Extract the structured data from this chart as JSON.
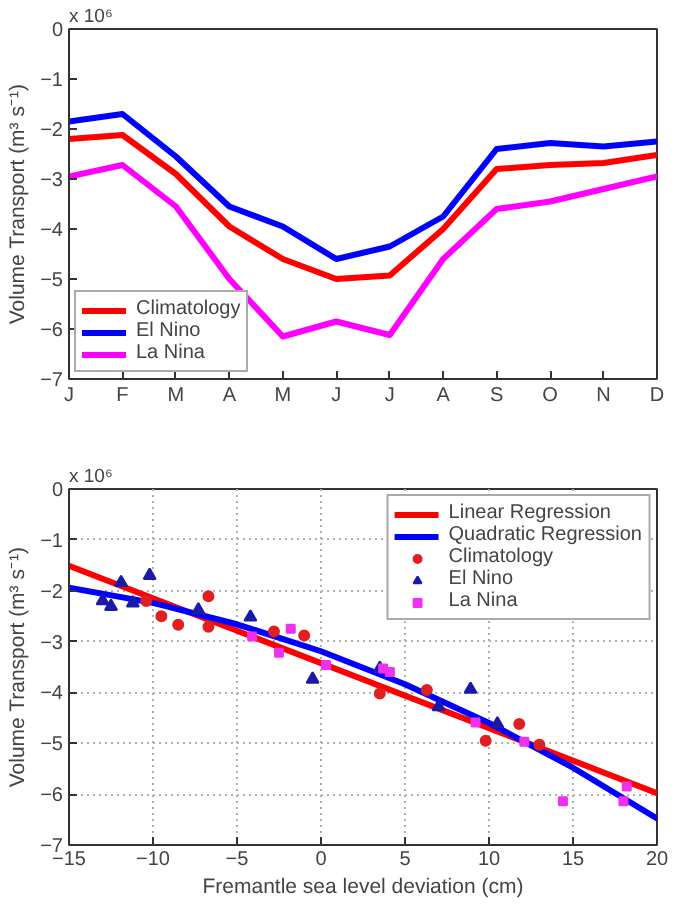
{
  "chart_data": [
    {
      "type": "line",
      "ylabel": "Volume Transport (m³ s⁻¹)",
      "annotations": [
        "x 10⁶"
      ],
      "categories": [
        "J",
        "F",
        "M",
        "A",
        "M",
        "J",
        "J",
        "A",
        "S",
        "O",
        "N",
        "D"
      ],
      "ylim": [
        -7,
        0
      ],
      "yticks": [
        -7,
        -6,
        -5,
        -4,
        -3,
        -2,
        -1,
        0
      ],
      "legend": "bottom left",
      "series": [
        {
          "name": "Climatology",
          "color": "#ff0000",
          "values": [
            -2.2,
            -2.12,
            -2.9,
            -3.95,
            -4.6,
            -5.0,
            -4.93,
            -4.0,
            -2.8,
            -2.72,
            -2.68,
            -2.52
          ]
        },
        {
          "name": "El Nino",
          "color": "#0000ff",
          "values": [
            -1.85,
            -1.7,
            -2.55,
            -3.55,
            -3.95,
            -4.6,
            -4.35,
            -3.75,
            -2.4,
            -2.28,
            -2.35,
            -2.25
          ]
        },
        {
          "name": "La Nina",
          "color": "#ff00ff",
          "values": [
            -2.95,
            -2.72,
            -3.55,
            -5.0,
            -6.15,
            -5.85,
            -6.12,
            -4.6,
            -3.6,
            -3.45,
            -3.2,
            -2.95
          ]
        }
      ]
    },
    {
      "type": "scatter",
      "xlabel": "Fremantle sea level deviation (cm)",
      "ylabel": "Volume Transport (m³ s⁻¹)",
      "annotations": [
        "x 10⁶"
      ],
      "xlim": [
        -15,
        20
      ],
      "xticks": [
        -15,
        -10,
        -5,
        0,
        5,
        10,
        15,
        20
      ],
      "ylim": [
        -7,
        0
      ],
      "yticks": [
        -7,
        -6,
        -5,
        -4,
        -3,
        -2,
        -1,
        0
      ],
      "grid": true,
      "legend": "top right",
      "series": [
        {
          "name": "Linear Regression",
          "type": "line",
          "marker": "none",
          "color": "#ff0000",
          "x": [
            -15,
            20
          ],
          "values": [
            -1.51,
            -5.98
          ]
        },
        {
          "name": "Quadratic Regression",
          "type": "line",
          "marker": "none",
          "color": "#0000ff",
          "x": [
            -15,
            -10,
            -5,
            0,
            5,
            10,
            15,
            20
          ],
          "values": [
            -1.94,
            -2.24,
            -2.66,
            -3.19,
            -3.84,
            -4.6,
            -5.48,
            -6.48
          ]
        },
        {
          "name": "Climatology",
          "type": "scatter",
          "marker": "circle",
          "color": "#e02020",
          "x": [
            -10.4,
            -9.5,
            -8.5,
            -6.7,
            -6.7,
            -2.8,
            -1.0,
            3.5,
            6.3,
            9.8,
            11.8,
            13.0
          ],
          "values": [
            -2.2,
            -2.5,
            -2.67,
            -2.11,
            -2.71,
            -2.8,
            -2.88,
            -4.02,
            -3.95,
            -4.95,
            -4.62,
            -5.03
          ]
        },
        {
          "name": "El Nino",
          "type": "scatter",
          "marker": "triangle",
          "color": "#1a1aa8",
          "x": [
            -13.0,
            -12.5,
            -11.9,
            -11.2,
            -10.2,
            -7.3,
            -4.2,
            -0.5,
            3.5,
            7.0,
            8.9,
            10.5
          ],
          "values": [
            -2.2,
            -2.31,
            -1.84,
            -2.24,
            -1.7,
            -2.38,
            -2.52,
            -3.74,
            -3.53,
            -4.28,
            -3.94,
            -4.62
          ]
        },
        {
          "name": "La Nina",
          "type": "scatter",
          "marker": "square",
          "color": "#f030f0",
          "x": [
            -4.1,
            -2.5,
            -1.8,
            0.3,
            3.7,
            4.1,
            9.2,
            12.1,
            14.4,
            18.0,
            18.2
          ],
          "values": [
            -2.9,
            -3.22,
            -2.75,
            -3.46,
            -3.53,
            -3.6,
            -4.59,
            -4.97,
            -6.14,
            -6.14,
            -5.85
          ]
        }
      ]
    }
  ]
}
